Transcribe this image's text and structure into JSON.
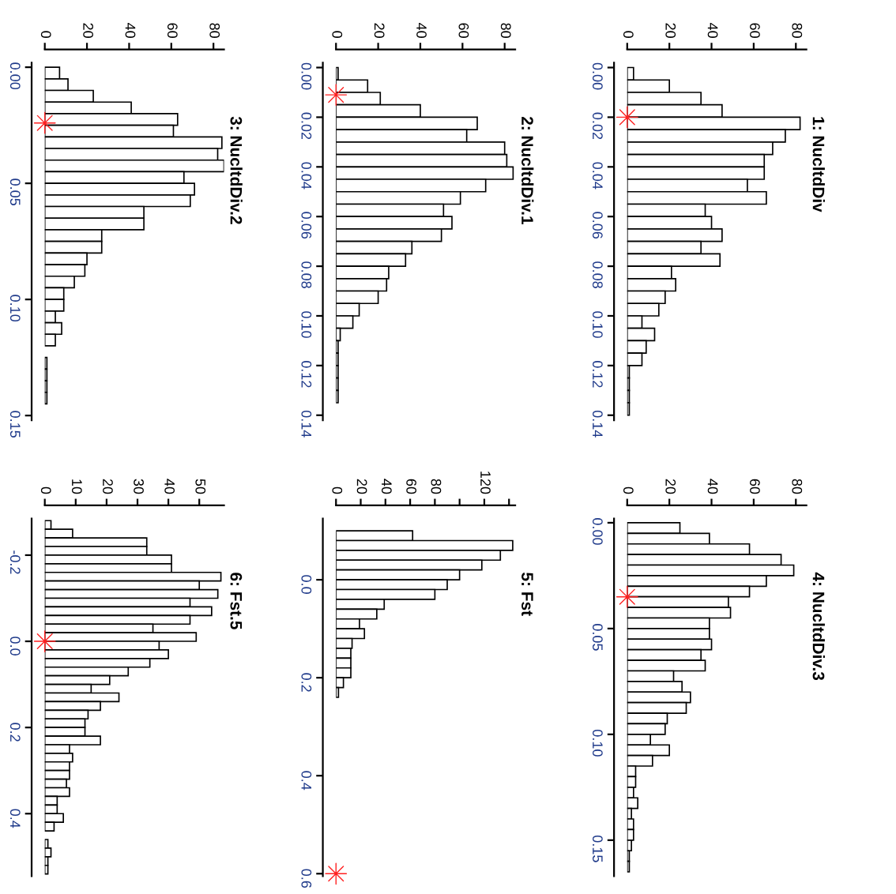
{
  "chart_data": [
    {
      "type": "histogram",
      "title": "1: NucltdDiv",
      "orientation": "horizontal",
      "bins": [
        0.0,
        0.005,
        0.01,
        0.015,
        0.02,
        0.025,
        0.03,
        0.035,
        0.04,
        0.045,
        0.05,
        0.055,
        0.06,
        0.065,
        0.07,
        0.075,
        0.08,
        0.085,
        0.09,
        0.095,
        0.1,
        0.105,
        0.11,
        0.115,
        0.12,
        0.125,
        0.13,
        0.135,
        0.14
      ],
      "values": [
        3,
        20,
        35,
        45,
        82,
        75,
        69,
        65,
        65,
        57,
        66,
        37,
        40,
        45,
        35,
        44,
        21,
        23,
        18,
        15,
        7,
        13,
        9,
        7,
        1,
        1,
        1,
        1
      ],
      "color": "#ffffff",
      "xlim": [
        0,
        85
      ],
      "xticks": [
        0,
        20,
        40,
        60,
        80
      ],
      "ylim": [
        0.142,
        -0.002
      ],
      "yticks": [
        {
          "value": 0,
          "label": "0.00"
        },
        {
          "value": 0.02,
          "label": "0.02"
        },
        {
          "value": 0.04,
          "label": "0.04"
        },
        {
          "value": 0.06,
          "label": "0.06"
        },
        {
          "value": 0.08,
          "label": "0.08"
        },
        {
          "value": 0.1,
          "label": "0.10"
        },
        {
          "value": 0.12,
          "label": "0.12"
        },
        {
          "value": 0.14,
          "label": "0.14"
        }
      ],
      "series": [
        {
          "type": "scatter",
          "x": [
            0.02
          ],
          "values": [
            0
          ],
          "color": "#ff2020",
          "marker": "star"
        }
      ]
    },
    {
      "type": "histogram",
      "title": "2: NucltdDiv.1",
      "orientation": "horizontal",
      "bins": [
        0.0,
        0.005,
        0.01,
        0.015,
        0.02,
        0.025,
        0.03,
        0.035,
        0.04,
        0.045,
        0.05,
        0.055,
        0.06,
        0.065,
        0.07,
        0.075,
        0.08,
        0.085,
        0.09,
        0.095,
        0.1,
        0.105,
        0.11,
        0.115,
        0.12,
        0.125,
        0.13,
        0.135
      ],
      "values": [
        1,
        15,
        21,
        40,
        67,
        62,
        80,
        81,
        84,
        71,
        59,
        51,
        55,
        50,
        36,
        33,
        25,
        24,
        20,
        11,
        8,
        2,
        1,
        1,
        1,
        1,
        1
      ],
      "color": "#ffffff",
      "xlim": [
        0,
        85
      ],
      "xticks": [
        0,
        20,
        40,
        60,
        80
      ],
      "ylim": [
        0.142,
        -0.002
      ],
      "yticks": [
        {
          "value": 0,
          "label": "0.00"
        },
        {
          "value": 0.02,
          "label": "0.02"
        },
        {
          "value": 0.04,
          "label": "0.04"
        },
        {
          "value": 0.06,
          "label": "0.06"
        },
        {
          "value": 0.08,
          "label": "0.08"
        },
        {
          "value": 0.1,
          "label": "0.10"
        },
        {
          "value": 0.12,
          "label": "0.12"
        },
        {
          "value": 0.14,
          "label": "0.14"
        }
      ],
      "series": [
        {
          "type": "scatter",
          "x": [
            0.011
          ],
          "values": [
            0
          ],
          "color": "#ff2020",
          "marker": "star"
        }
      ]
    },
    {
      "type": "histogram",
      "title": "3: NucltdDiv.2",
      "orientation": "horizontal",
      "bins": [
        0.0,
        0.005,
        0.01,
        0.015,
        0.02,
        0.025,
        0.03,
        0.035,
        0.04,
        0.045,
        0.05,
        0.055,
        0.06,
        0.065,
        0.07,
        0.075,
        0.08,
        0.085,
        0.09,
        0.095,
        0.1,
        0.105,
        0.11,
        0.115,
        0.12,
        0.125,
        0.13,
        0.135,
        0.14,
        0.145
      ],
      "values": [
        7,
        11,
        23,
        41,
        63,
        61,
        84,
        82,
        85,
        66,
        71,
        69,
        47,
        47,
        27,
        27,
        20,
        19,
        14,
        9,
        9,
        5,
        8,
        5,
        0,
        1,
        1,
        1,
        1
      ],
      "color": "#ffffff",
      "xlim": [
        0,
        85
      ],
      "xticks": [
        0,
        20,
        40,
        60,
        80
      ],
      "ylim": [
        0.152,
        -0.002
      ],
      "yticks": [
        {
          "value": 0,
          "label": "0.00"
        },
        {
          "value": 0.05,
          "label": "0.05"
        },
        {
          "value": 0.1,
          "label": "0.10"
        },
        {
          "value": 0.15,
          "label": "0.15"
        }
      ],
      "series": [
        {
          "type": "scatter",
          "x": [
            0.024
          ],
          "values": [
            0
          ],
          "color": "#ff2020",
          "marker": "star"
        }
      ]
    },
    {
      "type": "histogram",
      "title": "4: NucltdDiv.3",
      "orientation": "horizontal",
      "bins": [
        0.0,
        0.005,
        0.01,
        0.015,
        0.02,
        0.025,
        0.03,
        0.035,
        0.04,
        0.045,
        0.05,
        0.055,
        0.06,
        0.065,
        0.07,
        0.075,
        0.08,
        0.085,
        0.09,
        0.095,
        0.1,
        0.105,
        0.11,
        0.115,
        0.12,
        0.125,
        0.13,
        0.135,
        0.14,
        0.145,
        0.15,
        0.155,
        0.16,
        0.165
      ],
      "values": [
        25,
        39,
        58,
        73,
        79,
        66,
        58,
        48,
        49,
        39,
        39,
        40,
        35,
        37,
        22,
        26,
        30,
        28,
        19,
        18,
        11,
        20,
        12,
        4,
        4,
        3,
        5,
        2,
        3,
        3,
        2,
        1,
        1
      ],
      "color": "#ffffff",
      "xlim": [
        0,
        85
      ],
      "xticks": [
        0,
        20,
        40,
        60,
        80
      ],
      "ylim": [
        0.167,
        -0.002
      ],
      "yticks": [
        {
          "value": 0,
          "label": "0.00"
        },
        {
          "value": 0.05,
          "label": "0.05"
        },
        {
          "value": 0.1,
          "label": "0.10"
        },
        {
          "value": 0.15,
          "label": "0.15"
        }
      ],
      "series": [
        {
          "type": "scatter",
          "x": [
            0.035
          ],
          "values": [
            0
          ],
          "color": "#ff2020",
          "marker": "star"
        }
      ]
    },
    {
      "type": "histogram",
      "title": "5: Fst",
      "orientation": "horizontal",
      "bins": [
        -0.12,
        -0.1,
        -0.08,
        -0.06,
        -0.04,
        -0.02,
        0.0,
        0.02,
        0.04,
        0.06,
        0.08,
        0.1,
        0.12,
        0.14,
        0.16,
        0.18,
        0.2,
        0.22,
        0.24,
        0.26,
        0.28,
        0.3,
        0.32,
        0.34,
        0.36,
        0.38,
        0.4,
        0.42,
        0.44,
        0.46,
        0.48,
        0.5,
        0.52,
        0.54,
        0.56,
        0.58,
        0.6
      ],
      "values": [
        null,
        62,
        143,
        133,
        118,
        100,
        90,
        80,
        39,
        33,
        19,
        23,
        13,
        12,
        12,
        12,
        6,
        2,
        0,
        0,
        0,
        0,
        0,
        0,
        0,
        0,
        0,
        0,
        0,
        0,
        0,
        0,
        0,
        0,
        0,
        null
      ],
      "color": "#ffffff",
      "xlim": [
        0,
        145
      ],
      "xticks": [
        0,
        20,
        40,
        60,
        80,
        {
          "value": 100,
          "label": null
        },
        120,
        {
          "value": 140,
          "label": null
        }
      ],
      "ylim": [
        0.605,
        -0.125
      ],
      "yticks": [
        {
          "value": 0,
          "label": "0.0"
        },
        {
          "value": 0.2,
          "label": "0.2"
        },
        {
          "value": 0.4,
          "label": "0.4"
        },
        {
          "value": 0.6,
          "label": "0.6"
        }
      ],
      "series": [
        {
          "type": "scatter",
          "x": [
            0.6
          ],
          "values": [
            0
          ],
          "color": "#ff2020",
          "marker": "star"
        }
      ]
    },
    {
      "type": "histogram",
      "title": "6: Fst.5",
      "orientation": "horizontal",
      "bins": [
        -0.28,
        -0.26,
        -0.24,
        -0.22,
        -0.2,
        -0.18,
        -0.16,
        -0.14,
        -0.12,
        -0.1,
        -0.08,
        -0.06,
        -0.04,
        -0.02,
        0.0,
        0.02,
        0.04,
        0.06,
        0.08,
        0.1,
        0.12,
        0.14,
        0.16,
        0.18,
        0.2,
        0.22,
        0.24,
        0.26,
        0.28,
        0.3,
        0.32,
        0.34,
        0.36,
        0.38,
        0.4,
        0.42,
        0.44,
        0.46,
        0.48,
        0.5,
        0.52,
        0.54
      ],
      "values": [
        2,
        9,
        33,
        33,
        41,
        41,
        57,
        50,
        56,
        47,
        54,
        47,
        35,
        49,
        37,
        40,
        34,
        27,
        21,
        15,
        24,
        18,
        14,
        13,
        13,
        18,
        8,
        9,
        8,
        8,
        7,
        8,
        4,
        4,
        6,
        3,
        0,
        1,
        2,
        1,
        1
      ],
      "color": "#ffffff",
      "xlim": [
        0,
        58
      ],
      "xticks": [
        0,
        10,
        20,
        30,
        40,
        50
      ],
      "ylim": [
        0.545,
        -0.285
      ],
      "yticks": [
        {
          "value": -0.2,
          "label": "-0.2"
        },
        {
          "value": 0,
          "label": "0.0"
        },
        {
          "value": 0.2,
          "label": "0.2"
        },
        {
          "value": 0.4,
          "label": "0.4"
        }
      ],
      "series": [
        {
          "type": "scatter",
          "x": [
            0.0
          ],
          "values": [
            0
          ],
          "color": "#ff2020",
          "marker": "star"
        }
      ]
    }
  ]
}
